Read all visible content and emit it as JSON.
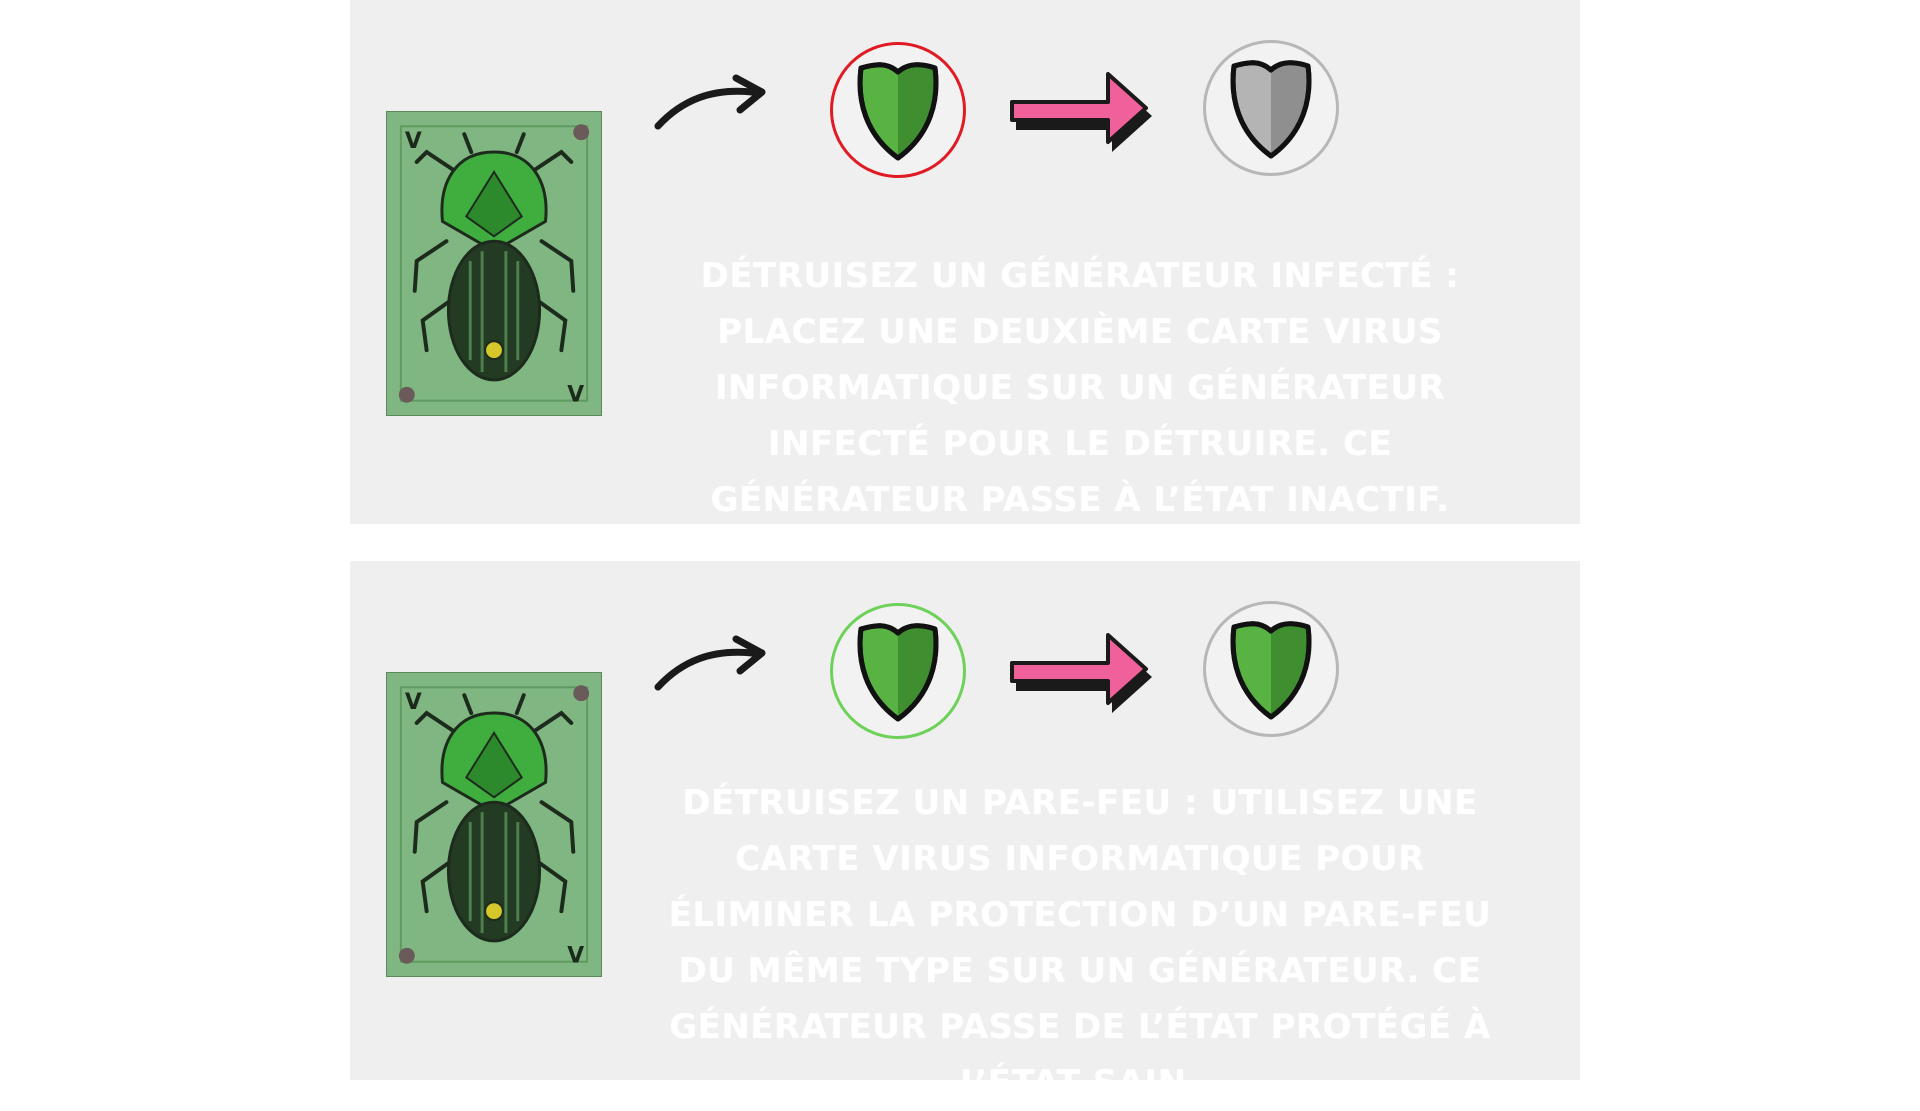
{
  "colors": {
    "panel_bg": "#efefef",
    "text": "#ffffff",
    "arrow_pink": "#f0609a",
    "ring_red": "#e01b23",
    "ring_green": "#6ed15a",
    "ring_gray": "#b7b7b7",
    "shield_green": "#4fa43a",
    "shield_gray": "#a7a7a7"
  },
  "panels": [
    {
      "card_icon": "beetle-virus-card-icon",
      "from_shield": {
        "icon": "green-shield-icon",
        "ring": "red"
      },
      "to_shield": {
        "icon": "gray-shield-icon",
        "ring": "gray"
      },
      "description": "Détruisez un générateur infecté : placez une deuxième carte virus informatique sur un générateur infecté pour le détruire. Ce générateur passe à l’état inactif."
    },
    {
      "card_icon": "beetle-virus-card-icon",
      "from_shield": {
        "icon": "green-shield-icon",
        "ring": "green"
      },
      "to_shield": {
        "icon": "green-shield-icon",
        "ring": "gray"
      },
      "description": "Détruisez un pare-feu : utilisez une carte virus informatique pour éliminer la protection d’un pare-feu du même type sur un générateur. Ce générateur passe de l’état protégé à l’état sain."
    }
  ]
}
